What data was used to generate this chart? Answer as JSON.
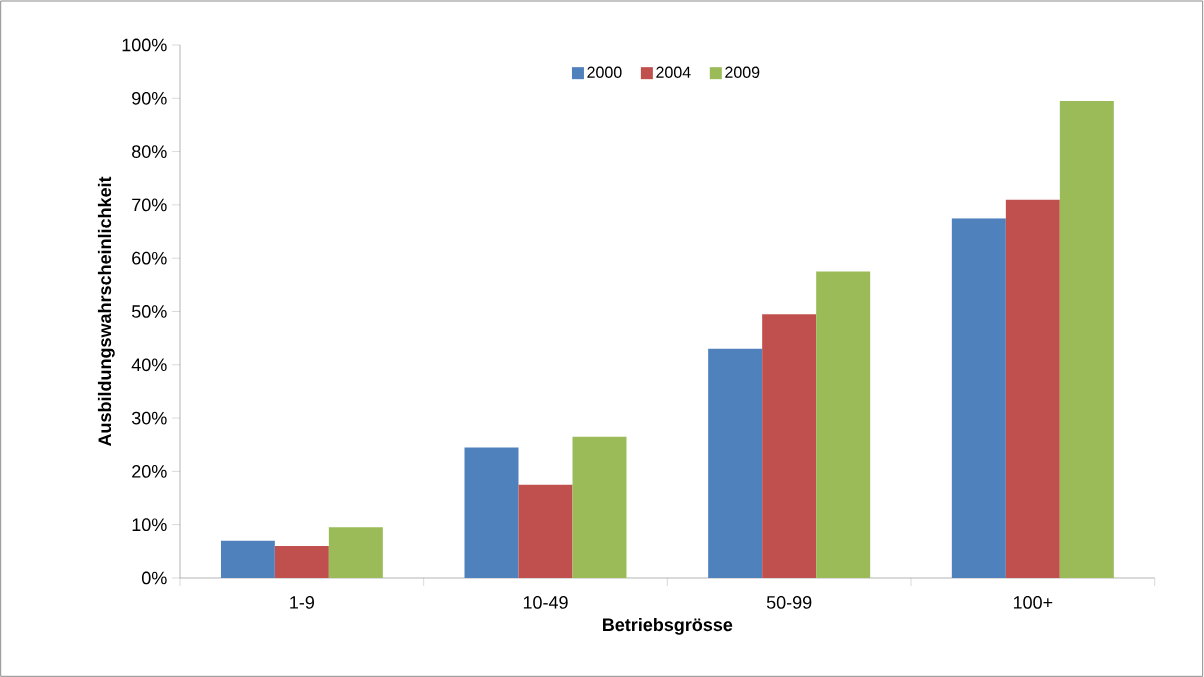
{
  "chart_data": {
    "type": "bar",
    "xlabel": "Betriebsgrösse",
    "ylabel": "Ausbildungswahrscheinlichkeit",
    "categories": [
      "1-9",
      "10-49",
      "50-99",
      "100+"
    ],
    "series": [
      {
        "name": "2000",
        "color": "#4f81bd",
        "values": [
          7,
          24.5,
          43,
          67.5
        ]
      },
      {
        "name": "2004",
        "color": "#c0504d",
        "values": [
          6,
          17.5,
          49.5,
          71
        ]
      },
      {
        "name": "2009",
        "color": "#9bbb59",
        "values": [
          9.5,
          26.5,
          57.5,
          89.5
        ]
      }
    ],
    "ylim": [
      0,
      100
    ],
    "yticks": [
      {
        "value": 0,
        "label": "0%"
      },
      {
        "value": 10,
        "label": "10%"
      },
      {
        "value": 20,
        "label": "20%"
      },
      {
        "value": 30,
        "label": "30%"
      },
      {
        "value": 40,
        "label": "40%"
      },
      {
        "value": 50,
        "label": "50%"
      },
      {
        "value": 60,
        "label": "60%"
      },
      {
        "value": 70,
        "label": "70%"
      },
      {
        "value": 80,
        "label": "80%"
      },
      {
        "value": 90,
        "label": "90%"
      },
      {
        "value": 100,
        "label": "100%"
      }
    ],
    "legend": "top"
  }
}
